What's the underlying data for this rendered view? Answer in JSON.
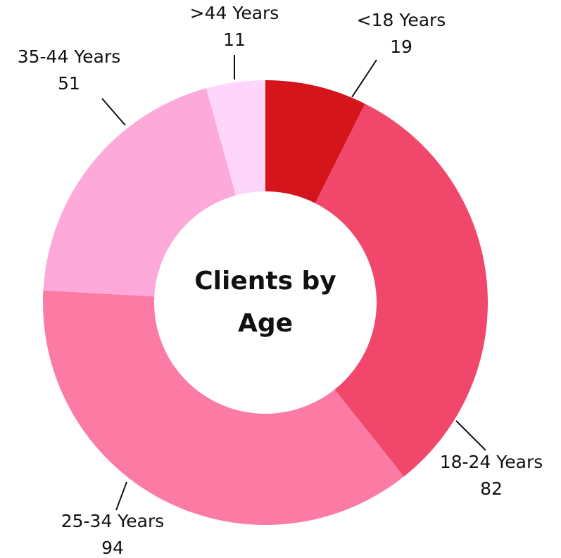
{
  "chart_data": {
    "type": "donut",
    "title": "Clients by Age",
    "categories": [
      "<18 Years",
      "18-24 Years",
      "25-34 Years",
      "35-44 Years",
      ">44 Years"
    ],
    "values": [
      19,
      82,
      94,
      51,
      11
    ],
    "colors": [
      "#d4151b",
      "#f0476b",
      "#fc7ba4",
      "#fdaadb",
      "#ffd6fb"
    ]
  }
}
